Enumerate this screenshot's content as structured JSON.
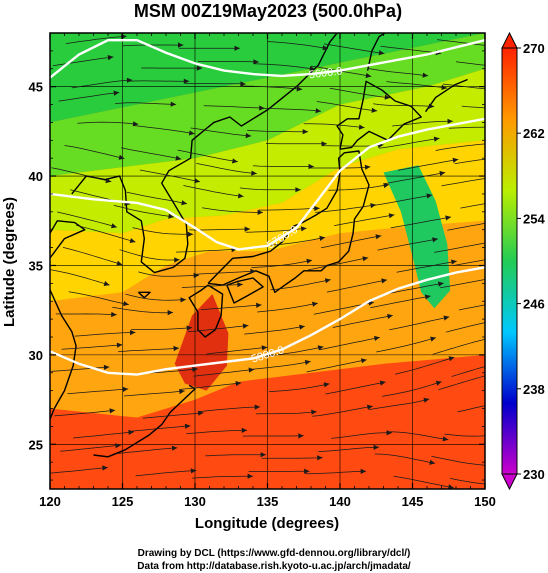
{
  "chart_data": {
    "type": "heatmap",
    "title": "MSM 00Z19May2023 (500.0hPa)",
    "xlabel": "Longitude (degrees)",
    "ylabel": "Latitude  (degrees)",
    "xlim": [
      120,
      150
    ],
    "ylim": [
      22.5,
      48
    ],
    "xticks": [
      "120",
      "125",
      "130",
      "135",
      "140",
      "145",
      "150"
    ],
    "yticks": [
      "25",
      "30",
      "35",
      "40",
      "45"
    ],
    "grid": true,
    "colorbar": {
      "range": [
        230,
        270
      ],
      "ticks": [
        "230",
        "238",
        "246",
        "254",
        "262",
        "270"
      ],
      "colors": [
        "#cc00cc",
        "#0000cc",
        "#00c8ff",
        "#22cc55",
        "#bbee00",
        "#ff9900",
        "#ff2200"
      ]
    },
    "contours": [
      {
        "label": "5600.0",
        "points": [
          [
            120,
            45.5
          ],
          [
            122,
            46.8
          ],
          [
            124,
            47.6
          ],
          [
            126,
            47.6
          ],
          [
            128,
            46.9
          ],
          [
            130,
            46.3
          ],
          [
            132,
            45.9
          ],
          [
            134,
            45.7
          ],
          [
            136,
            45.6
          ],
          [
            138,
            45.7
          ],
          [
            140,
            45.9
          ],
          [
            142,
            46.2
          ],
          [
            144,
            46.5
          ],
          [
            146,
            46.8
          ],
          [
            148,
            47.2
          ],
          [
            150,
            47.6
          ]
        ]
      },
      {
        "label": "5700.0",
        "points": [
          [
            120,
            39.0
          ],
          [
            123,
            38.7
          ],
          [
            126,
            38.5
          ],
          [
            128,
            38.1
          ],
          [
            130,
            37.1
          ],
          [
            131.5,
            36.3
          ],
          [
            133,
            35.9
          ],
          [
            135,
            36.1
          ],
          [
            137,
            37.1
          ],
          [
            138.5,
            38.7
          ],
          [
            140,
            40.3
          ],
          [
            142,
            41.6
          ],
          [
            144,
            42.2
          ],
          [
            146,
            42.6
          ],
          [
            148,
            42.9
          ],
          [
            150,
            43.2
          ]
        ]
      },
      {
        "label": "5800.0",
        "points": [
          [
            120,
            30.2
          ],
          [
            122,
            29.5
          ],
          [
            124,
            29.0
          ],
          [
            126,
            28.9
          ],
          [
            128,
            29.2
          ],
          [
            130,
            29.4
          ],
          [
            132,
            29.6
          ],
          [
            134,
            29.8
          ],
          [
            136,
            30.3
          ],
          [
            138,
            31.1
          ],
          [
            140,
            32.0
          ],
          [
            142,
            33.0
          ],
          [
            144,
            33.7
          ],
          [
            146,
            34.2
          ],
          [
            148,
            34.6
          ],
          [
            150,
            34.9
          ]
        ]
      }
    ],
    "sample_winds": [
      {
        "lon": 122,
        "lat": 45,
        "u": 8,
        "v": 1
      },
      {
        "lon": 130,
        "lat": 46,
        "u": 14,
        "v": 0
      },
      {
        "lon": 140,
        "lat": 45,
        "u": 14,
        "v": -2
      },
      {
        "lon": 147,
        "lat": 46,
        "u": 10,
        "v": -1
      },
      {
        "lon": 123,
        "lat": 40,
        "u": 10,
        "v": -2
      },
      {
        "lon": 130,
        "lat": 40,
        "u": 18,
        "v": -3
      },
      {
        "lon": 138,
        "lat": 41,
        "u": 22,
        "v": 0
      },
      {
        "lon": 145,
        "lat": 40,
        "u": 20,
        "v": 3
      },
      {
        "lon": 124,
        "lat": 35,
        "u": 12,
        "v": -3
      },
      {
        "lon": 131,
        "lat": 35,
        "u": 24,
        "v": 1
      },
      {
        "lon": 140,
        "lat": 35,
        "u": 24,
        "v": 4
      },
      {
        "lon": 147,
        "lat": 35,
        "u": 20,
        "v": 3
      },
      {
        "lon": 123,
        "lat": 30,
        "u": 16,
        "v": 1
      },
      {
        "lon": 132,
        "lat": 30,
        "u": 22,
        "v": 2
      },
      {
        "lon": 140,
        "lat": 30,
        "u": 18,
        "v": 3
      },
      {
        "lon": 147,
        "lat": 29,
        "u": 8,
        "v": 2
      },
      {
        "lon": 124,
        "lat": 25,
        "u": 12,
        "v": 1
      },
      {
        "lon": 135,
        "lat": 25,
        "u": 10,
        "v": 0
      },
      {
        "lon": 146,
        "lat": 24,
        "u": 6,
        "v": -1
      }
    ]
  },
  "footer": {
    "line1": "Drawing by DCL (https://www.gfd-dennou.org/library/dcl/)",
    "line2": "Data from http://database.rish.kyoto-u.ac.jp/arch/jmadata/"
  }
}
